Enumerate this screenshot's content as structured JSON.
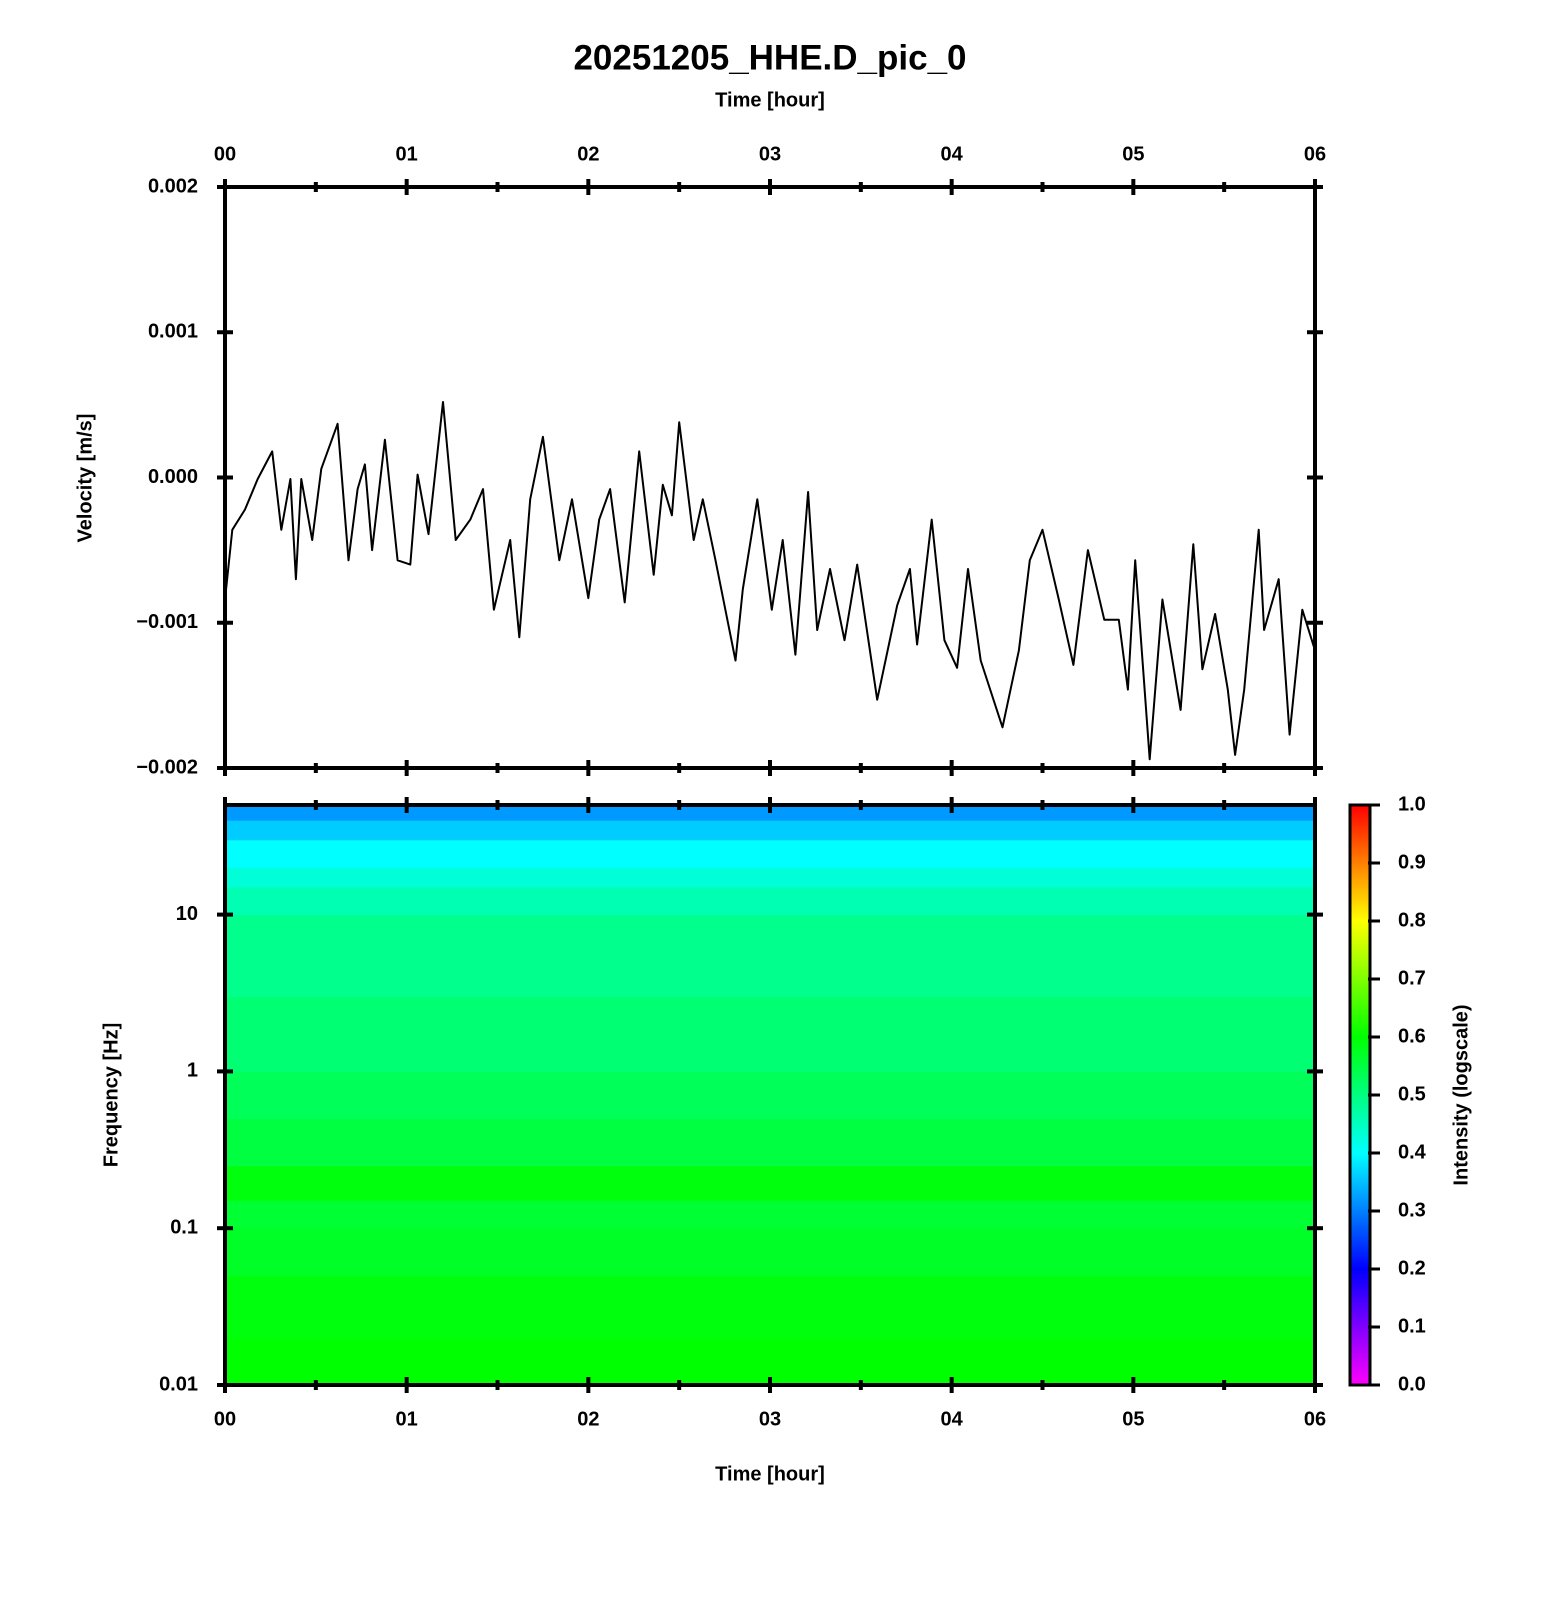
{
  "chart_data": [
    {
      "type": "line",
      "title": "20251205_HHE.D_pic_0",
      "xlabel": "Time [hour]",
      "ylabel": "Velocity [m/s]",
      "xlim": [
        0,
        6
      ],
      "xticks": [
        {
          "value": 0,
          "label": "00"
        },
        {
          "value": 1,
          "label": "01"
        },
        {
          "value": 2,
          "label": "02"
        },
        {
          "value": 3,
          "label": "03"
        },
        {
          "value": 4,
          "label": "04"
        },
        {
          "value": 5,
          "label": "05"
        },
        {
          "value": 6,
          "label": "06"
        }
      ],
      "ylim": [
        -0.002,
        0.002
      ],
      "yticks": [
        {
          "value": -0.002,
          "label": "−0.002"
        },
        {
          "value": -0.001,
          "label": "−0.001"
        },
        {
          "value": 0,
          "label": "0.000"
        },
        0.001,
        0.002
      ],
      "color": "#000000",
      "x": [
        0,
        0.04,
        0.11,
        0.18,
        0.26,
        0.31,
        0.36,
        0.39,
        0.42,
        0.48,
        0.53,
        0.62,
        0.68,
        0.73,
        0.77,
        0.81,
        0.88,
        0.95,
        1.02,
        1.06,
        1.12,
        1.2,
        1.27,
        1.35,
        1.42,
        1.48,
        1.57,
        1.62,
        1.68,
        1.75,
        1.84,
        1.91,
        2.0,
        2.06,
        2.12,
        2.2,
        2.28,
        2.36,
        2.41,
        2.46,
        2.5,
        2.58,
        2.63,
        2.7,
        2.81,
        2.85,
        2.93,
        3.01,
        3.07,
        3.14,
        3.21,
        3.26,
        3.33,
        3.41,
        3.48,
        3.59,
        3.7,
        3.77,
        3.81,
        3.89,
        3.96,
        4.03,
        4.09,
        4.16,
        4.28,
        4.37,
        4.43,
        4.5,
        4.59,
        4.67,
        4.75,
        4.84,
        4.92,
        4.97,
        5.01,
        5.09,
        5.16,
        5.26,
        5.33,
        5.38,
        5.45,
        5.52,
        5.56,
        5.61,
        5.69,
        5.72,
        5.8,
        5.86,
        5.93,
        6.0
      ],
      "values": [
        -0.00084,
        -0.00036,
        -0.00022,
        -1e-05,
        0.00018,
        -0.00036,
        -1e-05,
        -0.0007,
        -1e-05,
        -0.00043,
        6e-05,
        0.00037,
        -0.00057,
        -8e-05,
        9e-05,
        -0.0005,
        0.00026,
        -0.00057,
        -0.0006,
        2e-05,
        -0.00039,
        0.00052,
        -0.00043,
        -0.00029,
        -8e-05,
        -0.00091,
        -0.00043,
        -0.0011,
        -0.00015,
        0.00028,
        -0.00057,
        -0.00015,
        -0.00083,
        -0.00029,
        -8e-05,
        -0.00086,
        0.00018,
        -0.00067,
        -5e-05,
        -0.00026,
        0.00038,
        -0.00043,
        -0.00015,
        -0.00057,
        -0.00126,
        -0.00077,
        -0.00015,
        -0.00091,
        -0.00043,
        -0.00122,
        -0.0001,
        -0.00105,
        -0.00063,
        -0.00112,
        -0.0006,
        -0.00153,
        -0.00088,
        -0.00063,
        -0.00115,
        -0.00029,
        -0.00112,
        -0.00131,
        -0.00063,
        -0.00126,
        -0.00172,
        -0.00119,
        -0.00057,
        -0.00036,
        -0.00084,
        -0.00129,
        -0.0005,
        -0.00098,
        -0.00098,
        -0.00146,
        -0.00057,
        -0.00194,
        -0.00084,
        -0.0016,
        -0.00046,
        -0.00132,
        -0.00094,
        -0.00146,
        -0.00191,
        -0.00146,
        -0.00036,
        -0.00105,
        -0.0007,
        -0.00177,
        -0.00091,
        -0.00119
      ]
    },
    {
      "type": "heatmap",
      "xlabel": "Time [hour]",
      "ylabel": "Frequency [Hz]",
      "xlim": [
        0,
        6
      ],
      "xticks": [
        {
          "value": 0,
          "label": "00"
        },
        {
          "value": 1,
          "label": "01"
        },
        {
          "value": 2,
          "label": "02"
        },
        {
          "value": 3,
          "label": "03"
        },
        {
          "value": 4,
          "label": "04"
        },
        {
          "value": 5,
          "label": "05"
        },
        {
          "value": 6,
          "label": "06"
        }
      ],
      "ylim": [
        0.01,
        50
      ],
      "yticks": [
        0.01,
        0.1,
        1,
        10
      ],
      "log_y": true,
      "y_bins": [
        0.01,
        0.02,
        0.05,
        0.1,
        0.15,
        0.25,
        0.5,
        1,
        3,
        10,
        15,
        20,
        30,
        40,
        50
      ],
      "values": [
        0.6,
        0.59,
        0.57,
        0.56,
        0.59,
        0.55,
        0.53,
        0.51,
        0.49,
        0.46,
        0.43,
        0.4,
        0.36,
        0.32
      ],
      "colorbar_label": "Intensity (logscale)",
      "zlim": [
        0,
        1
      ],
      "zticks": [
        {
          "value": 0,
          "label": "0.0"
        },
        0.1,
        0.2,
        0.3,
        0.4,
        0.5,
        0.6,
        0.7,
        0.8,
        0.9,
        {
          "value": 1,
          "label": "1.0"
        }
      ],
      "colormap": [
        "#ff00ff",
        "#0000ff",
        "#00ffff",
        "#00ff00",
        "#ffff00",
        "#ff0000"
      ]
    }
  ]
}
